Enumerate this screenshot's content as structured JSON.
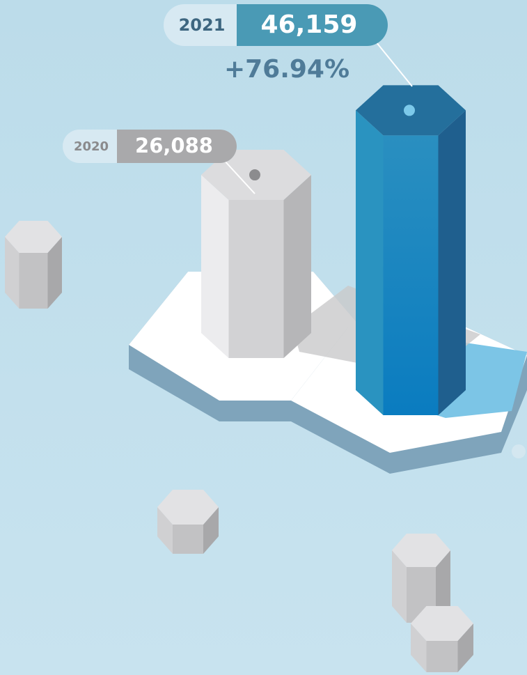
{
  "chart_data": {
    "type": "hex-prism",
    "categories": [
      "2020",
      "2021"
    ],
    "values": [
      26088,
      46159
    ],
    "value_labels": [
      "26,088",
      "46,159"
    ],
    "annotation": "+76.94%",
    "colors": [
      "#d6d6d8",
      "#1a8cc8"
    ]
  }
}
